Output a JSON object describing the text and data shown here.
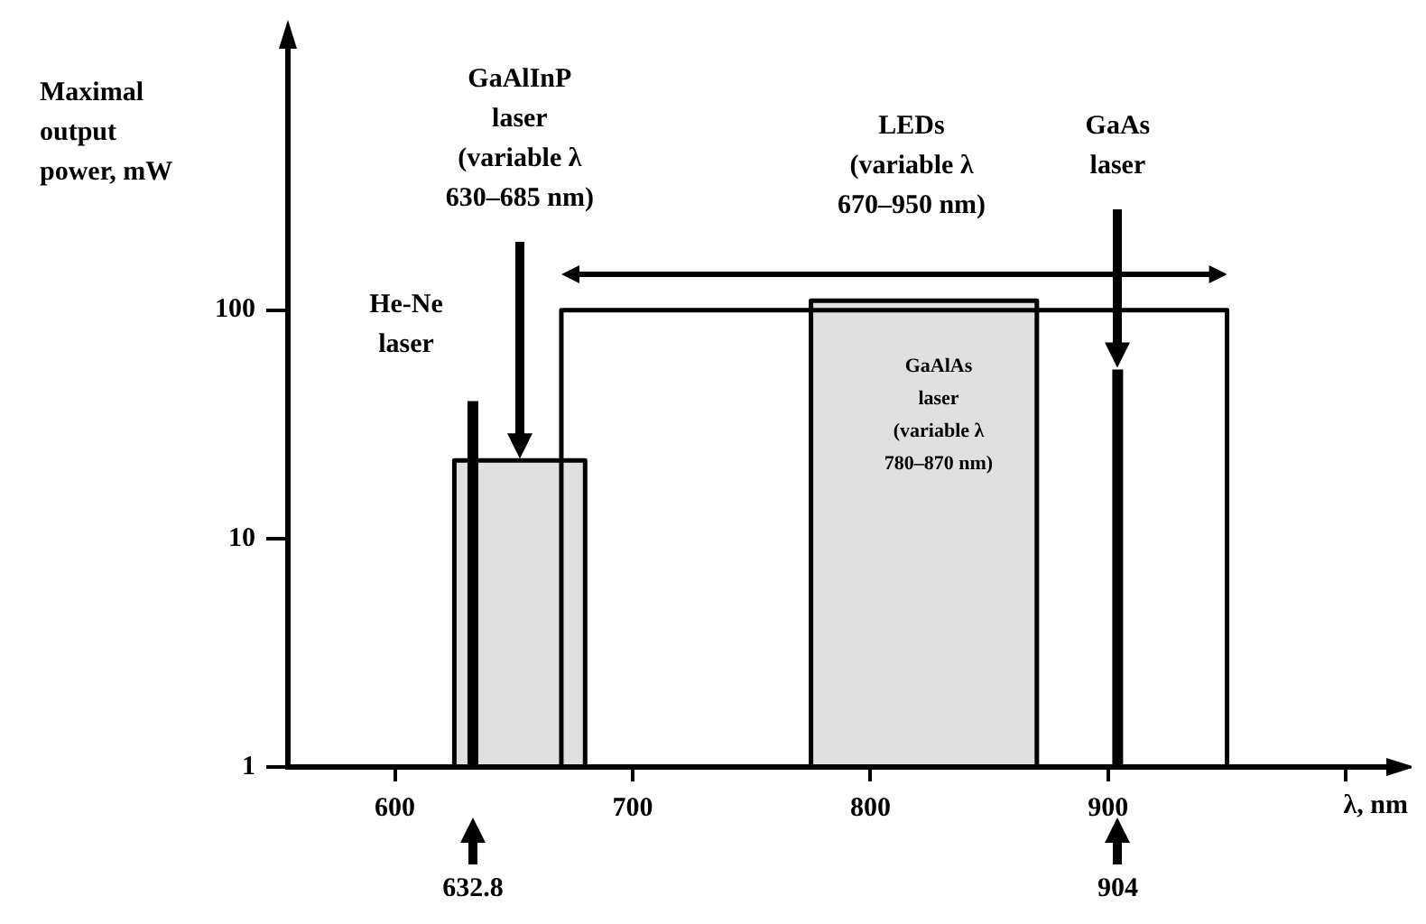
{
  "chart_data": {
    "type": "line",
    "xlabel": "λ, nm",
    "ylabel": "Maximal\noutput\npower, mW",
    "log": "y",
    "xlim": [
      555,
      1020
    ],
    "xticks": [
      600,
      700,
      800,
      900,
      {
        "value": 1000,
        "label": null
      }
    ],
    "ylim": [
      1,
      1500
    ],
    "yticks": [
      1,
      10,
      100
    ],
    "series": [
      {
        "type": "line",
        "color": "#000000",
        "x": [
          632.8,
          632.8
        ],
        "values": [
          1,
          40
        ]
      },
      {
        "type": "area",
        "color": "#000000",
        "x": [
          625,
          625,
          680,
          680
        ],
        "values": [
          1,
          22,
          22,
          1
        ]
      },
      {
        "type": "line",
        "color": "#000000",
        "x": [
          670,
          670,
          950,
          950
        ],
        "values": [
          1,
          100,
          100,
          1
        ]
      },
      {
        "type": "area",
        "color": "#000000",
        "x": [
          775,
          775,
          870,
          870
        ],
        "values": [
          1,
          110,
          110,
          1
        ]
      },
      {
        "type": "line",
        "color": "#000000",
        "x": [
          904,
          904
        ],
        "values": [
          1,
          55
        ]
      }
    ],
    "annotations": [
      "He-Ne\nlaser",
      "GaAlInP\nlaser\n(variable λ\n630–685 nm)",
      "LEDs\n(variable λ\n670–950 nm)",
      "GaAs\nlaser",
      "GaAlAs\nlaser\n(variable λ\n780–870 nm)",
      "632.8",
      "904"
    ]
  }
}
